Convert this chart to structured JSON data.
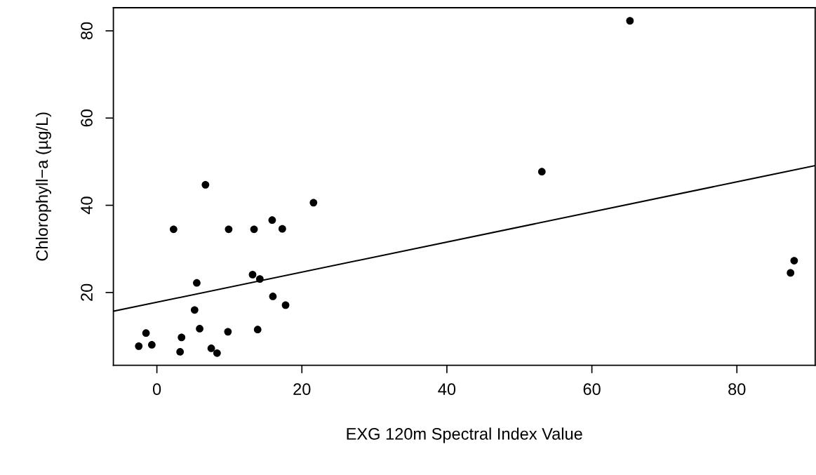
{
  "chart_data": {
    "type": "scatter",
    "xlabel": "EXG 120m Spectral Index Value",
    "ylabel": "Chlorophyll−a (µg/L)",
    "grid": false,
    "legend": false,
    "xlim": [
      -6.0,
      90.8
    ],
    "ylim": [
      3.3,
      85.3
    ],
    "xticks": [
      0,
      20,
      40,
      60,
      80
    ],
    "yticks": [
      20,
      40,
      60,
      80
    ],
    "series": [
      {
        "marker": "circle",
        "color": "#000000",
        "x": [
          -2.5,
          -1.5,
          -0.7,
          2.3,
          3.2,
          3.4,
          5.2,
          5.5,
          5.9,
          6.7,
          7.5,
          8.3,
          9.8,
          9.9,
          13.2,
          13.4,
          13.9,
          14.2,
          15.9,
          16.0,
          17.3,
          17.75,
          21.6,
          53.1,
          65.25,
          87.4,
          87.9
        ],
        "values": [
          7.7,
          10.7,
          8.0,
          34.5,
          6.4,
          9.7,
          16.0,
          22.2,
          11.7,
          44.7,
          7.2,
          6.1,
          11.0,
          34.5,
          24.1,
          34.5,
          11.5,
          23.1,
          36.6,
          19.1,
          34.6,
          17.1,
          40.6,
          47.7,
          82.3,
          24.5,
          27.3
        ]
      },
      {
        "type": "line",
        "color": "#000000",
        "x": [
          -6.0,
          90.8
        ],
        "values": [
          15.7,
          49.1
        ]
      }
    ]
  }
}
